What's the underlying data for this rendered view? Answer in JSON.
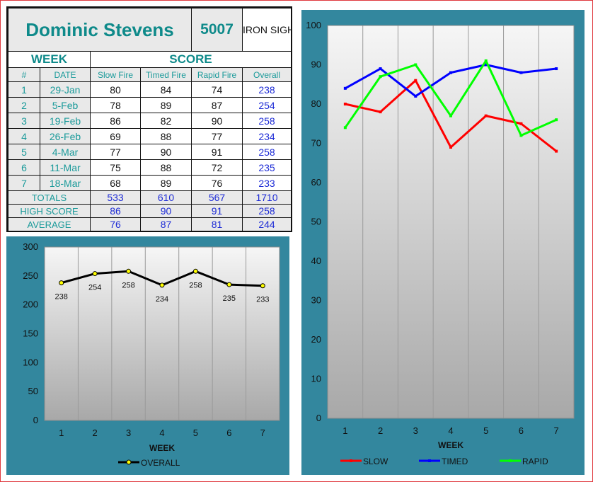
{
  "shooter": {
    "name": "Dominic Stevens",
    "id": "5007",
    "sights": "IRON SIGHTS"
  },
  "table": {
    "group_headers": {
      "week": "WEEK",
      "score": "SCORE"
    },
    "columns": {
      "num": "#",
      "date": "DATE",
      "slow": "Slow Fire",
      "timed": "Timed Fire",
      "rapid": "Rapid Fire",
      "overall": "Overall"
    },
    "rows": [
      {
        "num": "1",
        "date": "29-Jan",
        "slow": "80",
        "timed": "84",
        "rapid": "74",
        "overall": "238"
      },
      {
        "num": "2",
        "date": "5-Feb",
        "slow": "78",
        "timed": "89",
        "rapid": "87",
        "overall": "254"
      },
      {
        "num": "3",
        "date": "19-Feb",
        "slow": "86",
        "timed": "82",
        "rapid": "90",
        "overall": "258"
      },
      {
        "num": "4",
        "date": "26-Feb",
        "slow": "69",
        "timed": "88",
        "rapid": "77",
        "overall": "234"
      },
      {
        "num": "5",
        "date": "4-Mar",
        "slow": "77",
        "timed": "90",
        "rapid": "91",
        "overall": "258"
      },
      {
        "num": "6",
        "date": "11-Mar",
        "slow": "75",
        "timed": "88",
        "rapid": "72",
        "overall": "235"
      },
      {
        "num": "7",
        "date": "18-Mar",
        "slow": "68",
        "timed": "89",
        "rapid": "76",
        "overall": "233"
      }
    ],
    "totals": {
      "label": "TOTALS",
      "slow": "533",
      "timed": "610",
      "rapid": "567",
      "overall": "1710"
    },
    "high": {
      "label": "HIGH SCORE",
      "slow": "86",
      "timed": "90",
      "rapid": "91",
      "overall": "258"
    },
    "average": {
      "label": "AVERAGE",
      "slow": "76",
      "timed": "87",
      "rapid": "81",
      "overall": "244"
    }
  },
  "colors": {
    "teal_text": "#0e8a8a",
    "total_blue": "#1e2cd6",
    "panel_bg": "#33879e",
    "slow": "#ff0000",
    "timed": "#0000ff",
    "rapid": "#00ff00",
    "overall": "#000000",
    "marker_fill": "#ffff00"
  },
  "chart_data": [
    {
      "type": "line",
      "title": "",
      "xlabel": "WEEK",
      "ylabel": "",
      "categories": [
        "1",
        "2",
        "3",
        "4",
        "5",
        "6",
        "7"
      ],
      "series": [
        {
          "name": "OVERALL",
          "values": [
            238,
            254,
            258,
            234,
            258,
            235,
            233
          ],
          "data_labels": [
            "238",
            "254",
            "258",
            "234",
            "258",
            "235",
            "233"
          ]
        }
      ],
      "ylim": [
        0,
        300
      ],
      "yticks": [
        "0",
        "50",
        "100",
        "150",
        "200",
        "250",
        "300"
      ],
      "grid": true,
      "legend": "bottom"
    },
    {
      "type": "line",
      "title": "",
      "xlabel": "WEEK",
      "ylabel": "",
      "categories": [
        "1",
        "2",
        "3",
        "4",
        "5",
        "6",
        "7"
      ],
      "series": [
        {
          "name": "SLOW",
          "values": [
            80,
            78,
            86,
            69,
            77,
            75,
            68
          ]
        },
        {
          "name": "TIMED",
          "values": [
            84,
            89,
            82,
            88,
            90,
            88,
            89
          ]
        },
        {
          "name": "RAPID",
          "values": [
            74,
            87,
            90,
            77,
            91,
            72,
            76
          ]
        }
      ],
      "ylim": [
        0,
        100
      ],
      "yticks": [
        "0",
        "10",
        "20",
        "30",
        "40",
        "50",
        "60",
        "70",
        "80",
        "90",
        "100"
      ],
      "grid": true,
      "legend": "bottom"
    }
  ]
}
